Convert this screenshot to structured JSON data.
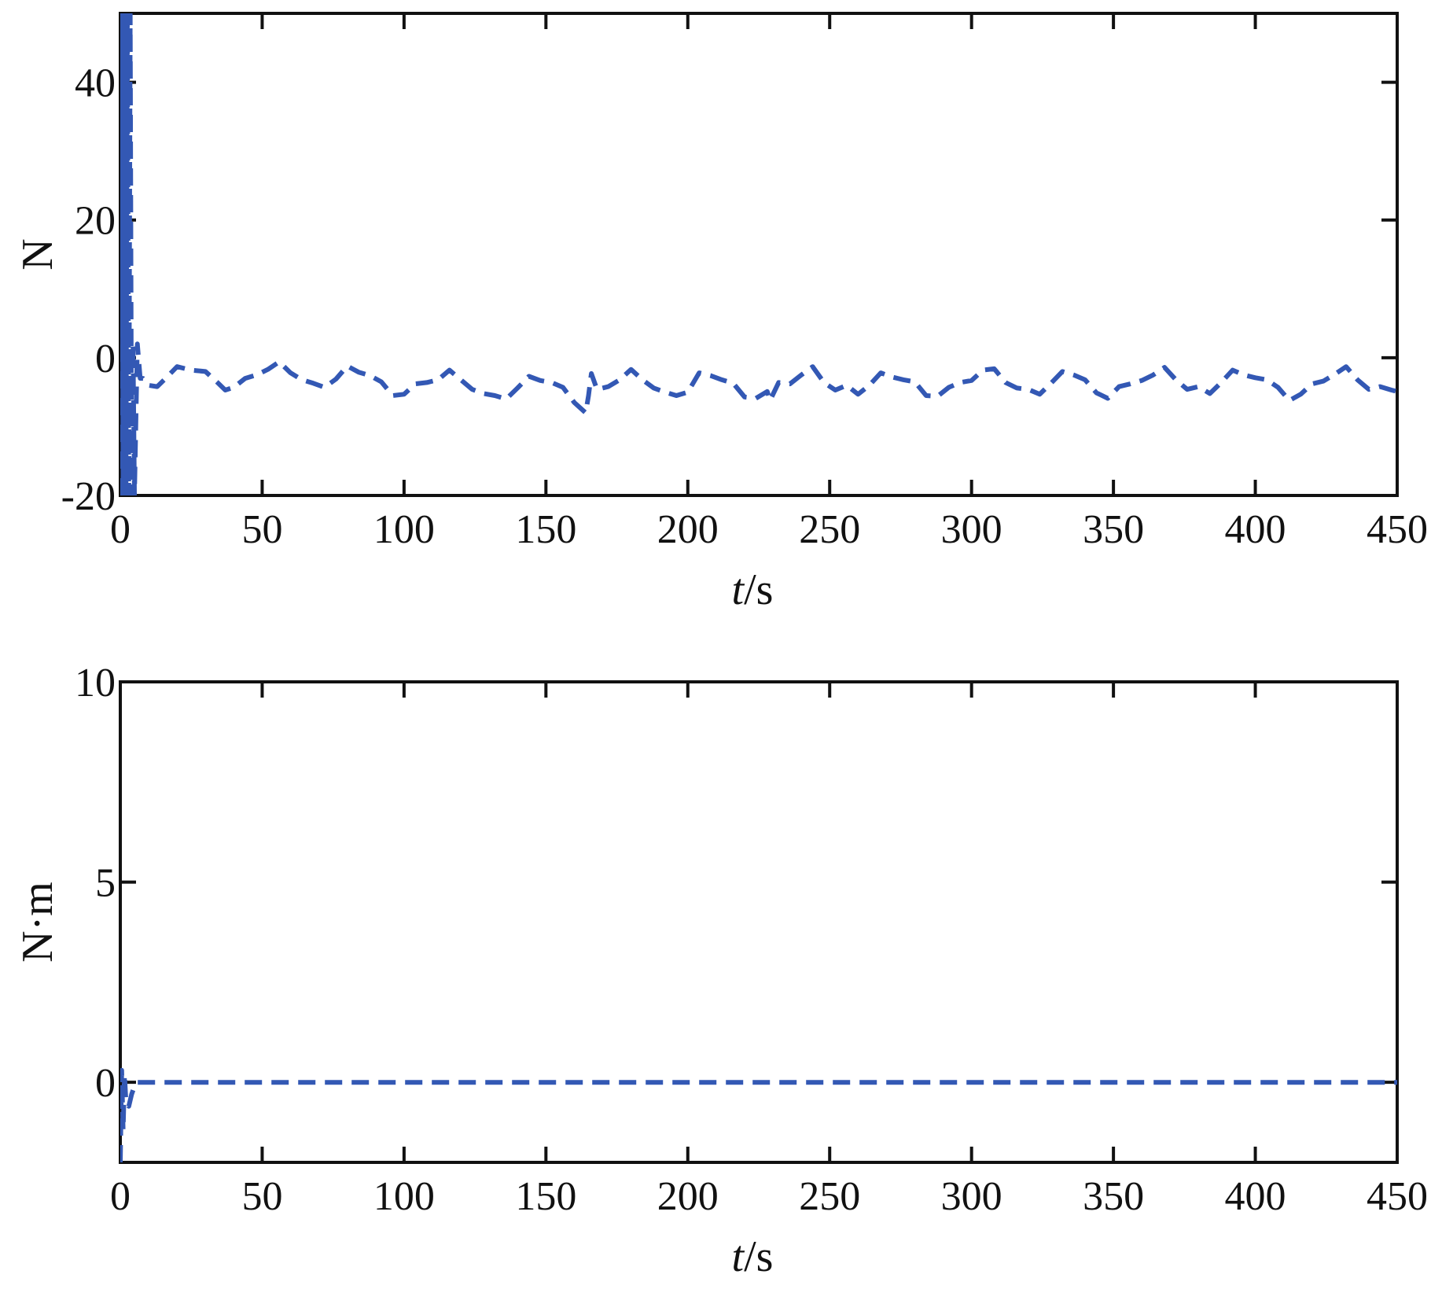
{
  "chart_data": [
    {
      "type": "line",
      "xlabel": {
        "var": "t",
        "unit": "/s"
      },
      "ylabel": "N",
      "xlim": [
        0,
        450
      ],
      "ylim": [
        -20,
        50
      ],
      "xticks": [
        0,
        50,
        100,
        150,
        200,
        250,
        300,
        350,
        400,
        450
      ],
      "yticks": [
        -20,
        0,
        20,
        40
      ],
      "ytick_labels": [
        "-20",
        "0",
        "20",
        "40"
      ],
      "grid": false,
      "color": "#3358b4",
      "series": [
        {
          "x": [
            0,
            0.5,
            1,
            1.5,
            2,
            2.5,
            3,
            3.5,
            4,
            4.5,
            5,
            6,
            7,
            8,
            10,
            13,
            16,
            20,
            25,
            30,
            34,
            37,
            40,
            44,
            48,
            52,
            56,
            60,
            64,
            68,
            72,
            76,
            80,
            84,
            88,
            92,
            96,
            100,
            104,
            108,
            112,
            116,
            120,
            124,
            128,
            132,
            136,
            140,
            144,
            148,
            152,
            156,
            160,
            164,
            165,
            166,
            168,
            172,
            176,
            180,
            184,
            188,
            192,
            196,
            200,
            204,
            208,
            212,
            216,
            220,
            224,
            228,
            229,
            232,
            236,
            240,
            244,
            248,
            252,
            256,
            260,
            264,
            268,
            272,
            276,
            280,
            284,
            288,
            292,
            296,
            300,
            304,
            308,
            312,
            316,
            320,
            324,
            328,
            332,
            336,
            340,
            344,
            348,
            352,
            356,
            360,
            364,
            368,
            372,
            376,
            380,
            384,
            388,
            392,
            396,
            400,
            404,
            408,
            412,
            416,
            420,
            424,
            428,
            432,
            436,
            440,
            444,
            448,
            450
          ],
          "y": [
            -20,
            50,
            -20,
            50,
            -20,
            50,
            -20,
            50,
            -20,
            2,
            -20,
            2,
            -3,
            -3,
            -4,
            -4.2,
            -3,
            -1.3,
            -1.8,
            -2,
            -3.5,
            -4.7,
            -4.3,
            -3,
            -2.5,
            -1.7,
            -0.6,
            -2.2,
            -3.2,
            -3.7,
            -4.3,
            -3.1,
            -1.2,
            -2.1,
            -2.6,
            -3.5,
            -5.5,
            -5.3,
            -3.8,
            -3.6,
            -3.2,
            -1.8,
            -3.2,
            -4.6,
            -5.2,
            -5.5,
            -6,
            -4.4,
            -2.7,
            -3.3,
            -3.6,
            -4.3,
            -6.5,
            -8,
            -5.5,
            -2.3,
            -4.6,
            -4.2,
            -3.2,
            -1.7,
            -3.2,
            -4.4,
            -5,
            -5.5,
            -5,
            -2.2,
            -2.6,
            -3.2,
            -3.7,
            -5.7,
            -5.9,
            -4.9,
            -6.2,
            -3.6,
            -3.8,
            -2.5,
            -1.3,
            -3.6,
            -4.7,
            -4,
            -5.3,
            -4,
            -2.2,
            -2.8,
            -3.2,
            -3.5,
            -5.5,
            -5.6,
            -4.3,
            -3.6,
            -3.3,
            -1.8,
            -1.6,
            -3.6,
            -4.4,
            -4.6,
            -5.3,
            -3.7,
            -2,
            -2.5,
            -3.2,
            -5.1,
            -5.9,
            -4.2,
            -3.8,
            -3.3,
            -2.5,
            -1.4,
            -3.2,
            -4.6,
            -4.2,
            -5.2,
            -3.6,
            -1.8,
            -2.5,
            -2.9,
            -3.2,
            -4.3,
            -6.2,
            -5.3,
            -3.8,
            -3.4,
            -2.4,
            -1.3,
            -3.2,
            -4.6,
            -4.2,
            -4.7,
            -4.9
          ]
        }
      ]
    },
    {
      "type": "line",
      "xlabel": {
        "var": "t",
        "unit": "/s"
      },
      "ylabel": "N·m",
      "xlim": [
        0,
        450
      ],
      "ylim": [
        -2,
        10
      ],
      "xticks": [
        0,
        50,
        100,
        150,
        200,
        250,
        300,
        350,
        400,
        450
      ],
      "yticks": [
        0,
        5,
        10
      ],
      "ytick_labels": [
        "0",
        "5",
        "10"
      ],
      "grid": false,
      "color": "#3358b4",
      "series": [
        {
          "x": [
            0,
            0.5,
            1,
            1.5,
            2,
            3,
            4,
            5,
            6,
            8,
            450
          ],
          "y": [
            -2,
            0.3,
            -1.2,
            0.2,
            -0.5,
            -0.6,
            -0.3,
            -0.1,
            0,
            0,
            0
          ]
        }
      ]
    }
  ]
}
